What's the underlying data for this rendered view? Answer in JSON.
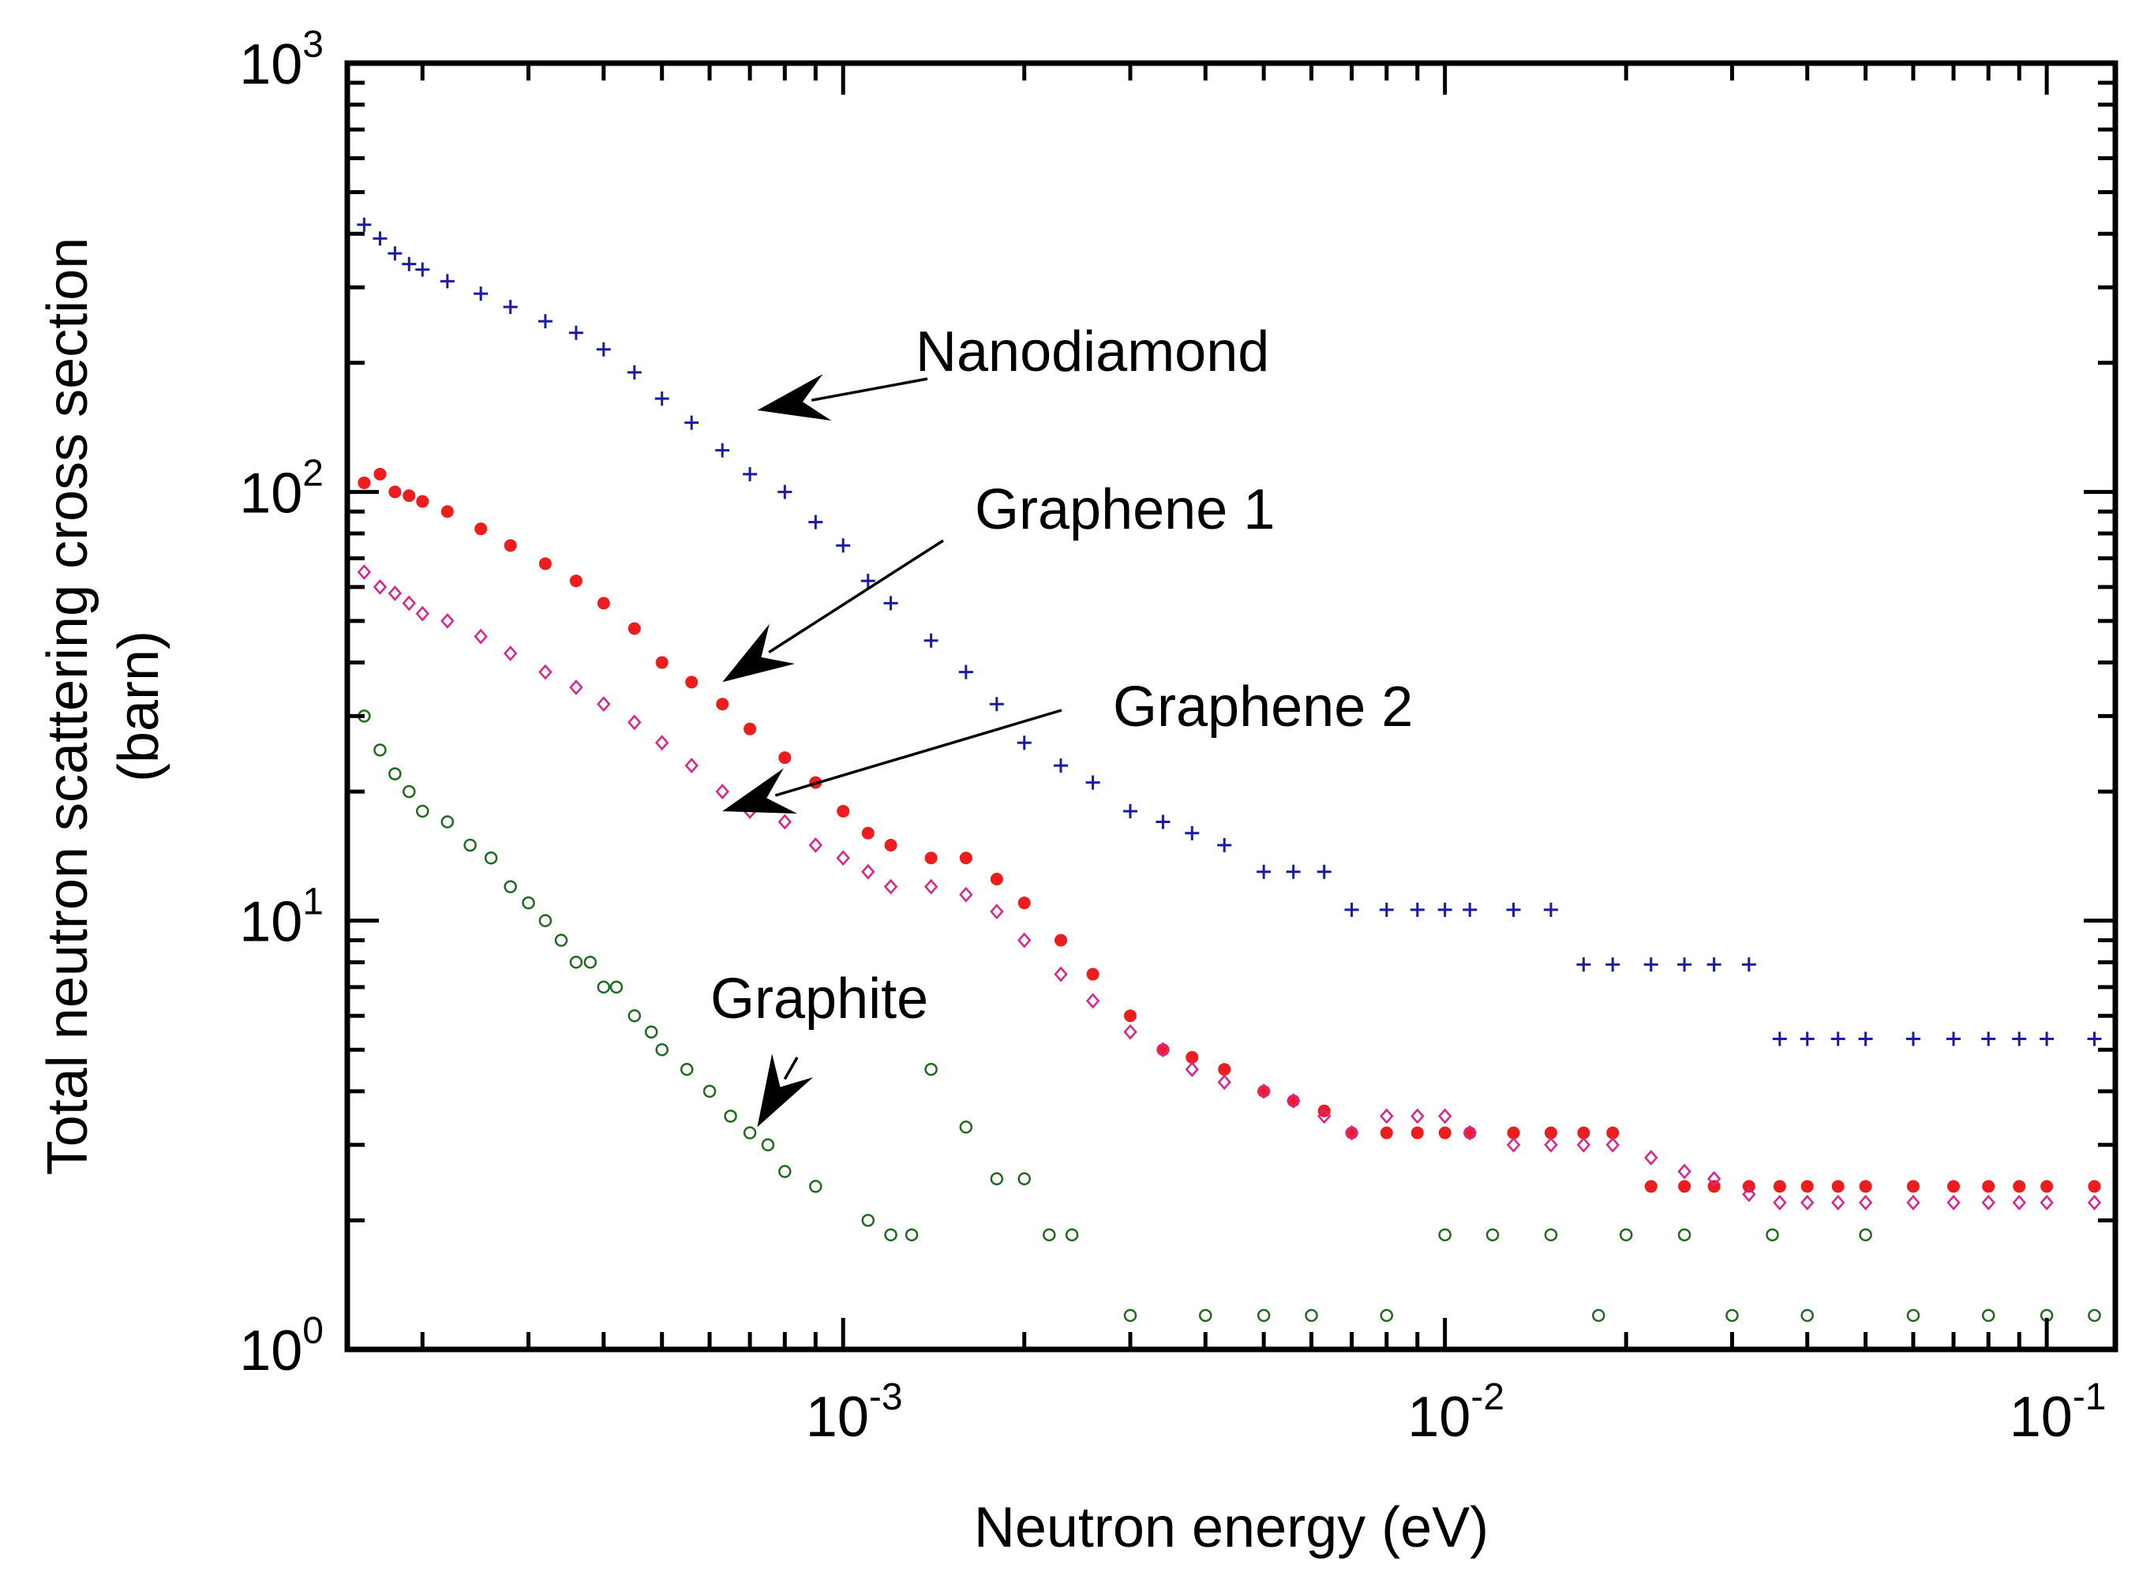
{
  "chart_data": {
    "type": "scatter",
    "title": "",
    "xlabel": "Neutron energy (eV)",
    "ylabel": [
      "Total neutron scattering cross section",
      "(barn)"
    ],
    "xscale": "log",
    "yscale": "log",
    "xlim": [
      0.00015,
      0.13
    ],
    "ylim": [
      1,
      1000
    ],
    "grid": false,
    "x_ticks": [
      {
        "value": 0.001,
        "base": "10",
        "exp": "-3"
      },
      {
        "value": 0.01,
        "base": "10",
        "exp": "-2"
      },
      {
        "value": 0.1,
        "base": "10",
        "exp": "-1"
      }
    ],
    "y_ticks": [
      {
        "value": 1,
        "base": "10",
        "exp": "0"
      },
      {
        "value": 10,
        "base": "10",
        "exp": "1"
      },
      {
        "value": 100,
        "base": "10",
        "exp": "2"
      },
      {
        "value": 1000,
        "base": "10",
        "exp": "3"
      }
    ],
    "series": [
      {
        "name": "Nanodiamond",
        "marker": "plus",
        "color": "#1a1aa6",
        "x": [
          0.00016,
          0.00017,
          0.00018,
          0.00019,
          0.0002,
          0.00022,
          0.00025,
          0.00028,
          0.00032,
          0.00036,
          0.0004,
          0.00045,
          0.0005,
          0.00056,
          0.00063,
          0.0007,
          0.0008,
          0.0009,
          0.001,
          0.0011,
          0.0012,
          0.0014,
          0.0016,
          0.0018,
          0.002,
          0.0023,
          0.0026,
          0.003,
          0.0034,
          0.0038,
          0.0043,
          0.005,
          0.0056,
          0.0063,
          0.007,
          0.008,
          0.009,
          0.01,
          0.011,
          0.013,
          0.015,
          0.017,
          0.019,
          0.022,
          0.025,
          0.028,
          0.032,
          0.036,
          0.04,
          0.045,
          0.05,
          0.06,
          0.07,
          0.08,
          0.09,
          0.1,
          0.12
        ],
        "y": [
          420,
          390,
          360,
          340,
          330,
          310,
          290,
          270,
          250,
          235,
          215,
          190,
          165,
          145,
          125,
          110,
          100,
          85,
          75,
          62,
          55,
          45,
          38,
          32,
          26,
          23,
          21,
          18,
          17,
          16,
          15,
          13,
          13,
          13,
          10.6,
          10.6,
          10.6,
          10.6,
          10.6,
          10.6,
          10.6,
          7.9,
          7.9,
          7.9,
          7.9,
          7.9,
          7.9,
          5.3,
          5.3,
          5.3,
          5.3,
          5.3,
          5.3,
          5.3,
          5.3,
          5.3,
          5.3
        ]
      },
      {
        "name": "Graphene 1",
        "marker": "filled-circle",
        "color": "#ee1c1c",
        "x": [
          0.00016,
          0.00017,
          0.00018,
          0.00019,
          0.0002,
          0.00022,
          0.00025,
          0.00028,
          0.00032,
          0.00036,
          0.0004,
          0.00045,
          0.0005,
          0.00056,
          0.00063,
          0.0007,
          0.0008,
          0.0009,
          0.001,
          0.0011,
          0.0012,
          0.0014,
          0.0016,
          0.0018,
          0.002,
          0.0023,
          0.0026,
          0.003,
          0.0034,
          0.0038,
          0.0043,
          0.005,
          0.0056,
          0.0063,
          0.007,
          0.008,
          0.009,
          0.01,
          0.011,
          0.013,
          0.015,
          0.017,
          0.019,
          0.022,
          0.025,
          0.028,
          0.032,
          0.036,
          0.04,
          0.045,
          0.05,
          0.06,
          0.07,
          0.08,
          0.09,
          0.1,
          0.12
        ],
        "y": [
          105,
          110,
          100,
          98,
          95,
          90,
          82,
          75,
          68,
          62,
          55,
          48,
          40,
          36,
          32,
          28,
          24,
          21,
          18,
          16,
          15,
          14,
          14,
          12.5,
          11,
          9,
          7.5,
          6,
          5,
          4.8,
          4.5,
          4,
          3.8,
          3.6,
          3.2,
          3.2,
          3.2,
          3.2,
          3.2,
          3.2,
          3.2,
          3.2,
          3.2,
          2.4,
          2.4,
          2.4,
          2.4,
          2.4,
          2.4,
          2.4,
          2.4,
          2.4,
          2.4,
          2.4,
          2.4,
          2.4,
          2.4
        ]
      },
      {
        "name": "Graphene 2",
        "marker": "open-diamond",
        "color": "#e0218a",
        "x": [
          0.00016,
          0.00017,
          0.00018,
          0.00019,
          0.0002,
          0.00022,
          0.00025,
          0.00028,
          0.00032,
          0.00036,
          0.0004,
          0.00045,
          0.0005,
          0.00056,
          0.00063,
          0.0007,
          0.0008,
          0.0009,
          0.001,
          0.0011,
          0.0012,
          0.0014,
          0.0016,
          0.0018,
          0.002,
          0.0023,
          0.0026,
          0.003,
          0.0034,
          0.0038,
          0.0043,
          0.005,
          0.0056,
          0.0063,
          0.007,
          0.008,
          0.009,
          0.01,
          0.011,
          0.013,
          0.015,
          0.017,
          0.019,
          0.022,
          0.025,
          0.028,
          0.032,
          0.036,
          0.04,
          0.045,
          0.05,
          0.06,
          0.07,
          0.08,
          0.09,
          0.1,
          0.12
        ],
        "y": [
          65,
          60,
          58,
          55,
          52,
          50,
          46,
          42,
          38,
          35,
          32,
          29,
          26,
          23,
          20,
          18,
          17,
          15,
          14,
          13,
          12,
          12,
          11.5,
          10.5,
          9,
          7.5,
          6.5,
          5.5,
          5,
          4.5,
          4.2,
          4,
          3.8,
          3.5,
          3.2,
          3.5,
          3.5,
          3.5,
          3.2,
          3.0,
          3.0,
          3.0,
          3.0,
          2.8,
          2.6,
          2.5,
          2.3,
          2.2,
          2.2,
          2.2,
          2.2,
          2.2,
          2.2,
          2.2,
          2.2,
          2.2,
          2.2
        ]
      },
      {
        "name": "Graphite",
        "marker": "open-circle",
        "color": "#1e6b1e",
        "x": [
          0.00016,
          0.00017,
          0.00018,
          0.00019,
          0.0002,
          0.00022,
          0.00024,
          0.00026,
          0.00028,
          0.0003,
          0.00032,
          0.00034,
          0.00036,
          0.00038,
          0.0004,
          0.00042,
          0.00045,
          0.00048,
          0.0005,
          0.00055,
          0.0006,
          0.00065,
          0.0007,
          0.00075,
          0.0008,
          0.0009,
          0.0011,
          0.0012,
          0.0013,
          0.0014,
          0.0016,
          0.0018,
          0.002,
          0.0022,
          0.0024,
          0.003,
          0.004,
          0.005,
          0.006,
          0.008,
          0.01,
          0.012,
          0.015,
          0.018,
          0.02,
          0.025,
          0.03,
          0.035,
          0.04,
          0.05,
          0.06,
          0.08,
          0.1,
          0.12
        ],
        "y": [
          30,
          25,
          22,
          20,
          18,
          17,
          15,
          14,
          12,
          11,
          10,
          9,
          8,
          8,
          7,
          7,
          6,
          5.5,
          5,
          4.5,
          4,
          3.5,
          3.2,
          3.0,
          2.6,
          2.4,
          2.0,
          1.85,
          1.85,
          4.5,
          3.3,
          2.5,
          2.5,
          1.85,
          1.85,
          1.2,
          1.2,
          1.2,
          1.2,
          1.2,
          1.85,
          1.85,
          1.85,
          1.2,
          1.85,
          1.85,
          1.2,
          1.85,
          1.2,
          1.85,
          1.2,
          1.2,
          1.2,
          1.2
        ]
      }
    ],
    "annotations": [
      {
        "text": "Nanodiamond",
        "series": "Nanodiamond",
        "points_to": {
          "x": 0.00072,
          "y": 155
        }
      },
      {
        "text": "Graphene 1",
        "series": "Graphene 1",
        "points_to": {
          "x": 0.00063,
          "y": 36
        }
      },
      {
        "text": "Graphene 2",
        "series": "Graphene 2",
        "points_to": {
          "x": 0.00063,
          "y": 18
        }
      },
      {
        "text": "Graphite",
        "series": "Graphite",
        "points_to": {
          "x": 0.00072,
          "y": 3.3
        }
      }
    ]
  }
}
